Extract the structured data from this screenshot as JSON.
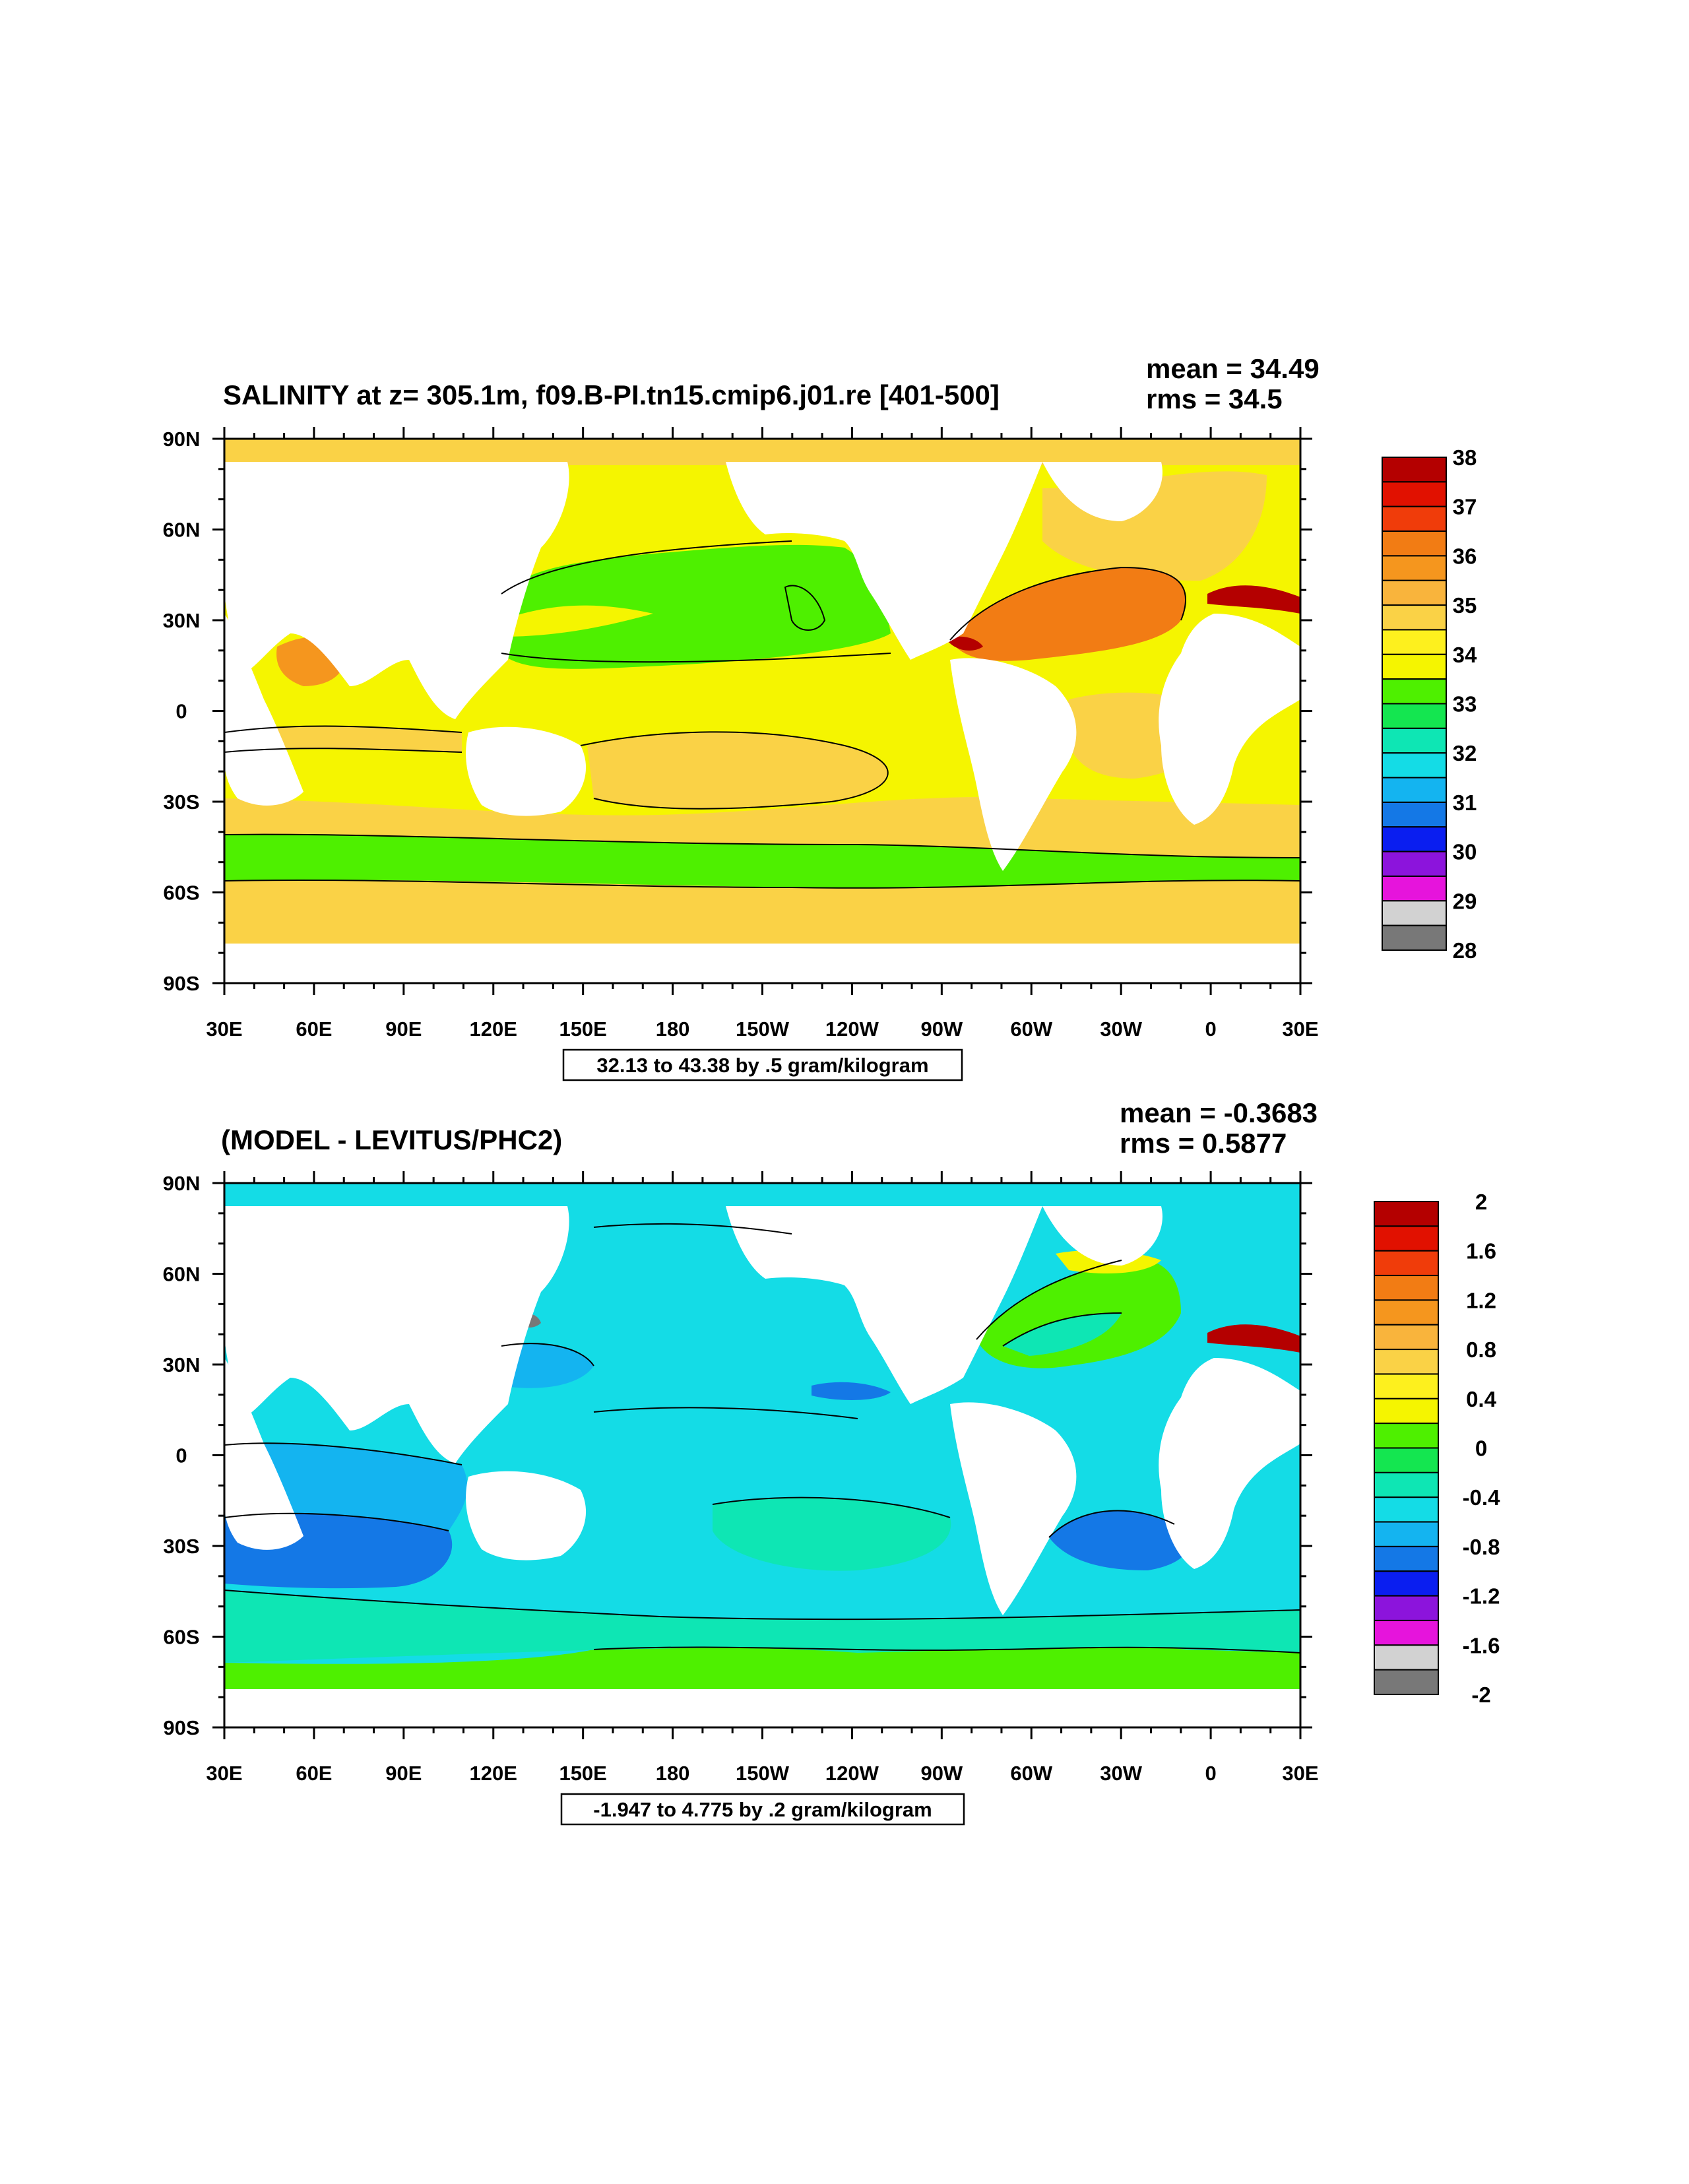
{
  "panels": [
    {
      "id": "salinity",
      "title": "SALINITY at z= 305.1m, f09.B-PI.tn15.cmip6.j01.re [401-500]",
      "mean": "mean = 34.49",
      "rms": "rms = 34.5",
      "range": "32.13 to 43.38 by .5 gram/kilogram",
      "yticks": [
        "90N",
        "60N",
        "30N",
        "0",
        "30S",
        "60S",
        "90S"
      ],
      "xticks": [
        "30E",
        "60E",
        "90E",
        "120E",
        "150E",
        "180",
        "150W",
        "120W",
        "90W",
        "60W",
        "30W",
        "0",
        "30E"
      ],
      "colorbar": {
        "labels": [
          "38",
          "37",
          "36",
          "35",
          "34",
          "33",
          "32",
          "31",
          "30",
          "29",
          "28"
        ],
        "colors": [
          "#b40000",
          "#e11100",
          "#f03c0a",
          "#f27c14",
          "#f5961e",
          "#f9b43c",
          "#fad246",
          "#fdf01e",
          "#f5f500",
          "#4ef000",
          "#14e650",
          "#0ee6b4",
          "#14dce6",
          "#14b4f0",
          "#1478e6",
          "#0a1ef0",
          "#8c14dc",
          "#e614dc",
          "#d2d2d2",
          "#787878"
        ]
      }
    },
    {
      "id": "difference",
      "title": "(MODEL - LEVITUS/PHC2)",
      "mean": "mean = -0.3683",
      "rms": "rms = 0.5877",
      "range": "-1.947 to 4.775 by .2 gram/kilogram",
      "yticks": [
        "90N",
        "60N",
        "30N",
        "0",
        "30S",
        "60S",
        "90S"
      ],
      "xticks": [
        "30E",
        "60E",
        "90E",
        "120E",
        "150E",
        "180",
        "150W",
        "120W",
        "90W",
        "60W",
        "30W",
        "0",
        "30E"
      ],
      "colorbar": {
        "labels": [
          "2",
          "1.6",
          "1.2",
          "0.8",
          "0.4",
          "0",
          "-0.4",
          "-0.8",
          "-1.2",
          "-1.6",
          "-2"
        ],
        "colors": [
          "#b40000",
          "#e11100",
          "#f03c0a",
          "#f27c14",
          "#f5961e",
          "#f9b43c",
          "#fad246",
          "#fdf01e",
          "#f5f500",
          "#4ef000",
          "#14e650",
          "#0ee6b4",
          "#14dce6",
          "#14b4f0",
          "#1478e6",
          "#0a1ef0",
          "#8c14dc",
          "#e614dc",
          "#d2d2d2",
          "#787878"
        ]
      }
    }
  ],
  "map_colors": {
    "land": "#ffffff",
    "sal_yellow": "#f5f500",
    "sal_lightorange": "#fad246",
    "sal_orange": "#f5961e",
    "sal_darkorange": "#f27c14",
    "sal_green": "#4ef000",
    "sal_red": "#b40000",
    "diff_cyan": "#14dce6",
    "diff_aqua": "#0ee6b4",
    "diff_green": "#4ef000",
    "diff_lightblue": "#14b4f0",
    "diff_blue": "#1478e6",
    "diff_darkblue": "#0a1ef0",
    "diff_yellow": "#f5f500",
    "diff_gray": "#787878"
  }
}
